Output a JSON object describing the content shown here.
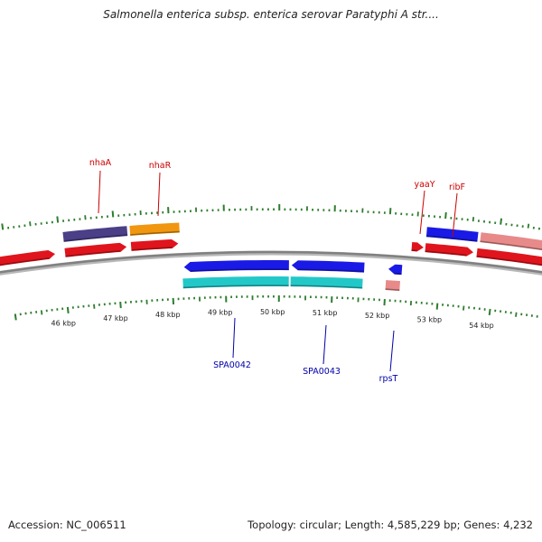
{
  "title": "Salmonella enterica subsp. enterica serovar Paratyphi A str....",
  "footer": {
    "accession": "Accession: NC_006511",
    "summary": "Topology: circular; Length: 4,585,229 bp; Genes: 4,232"
  },
  "colors": {
    "backbone": "#808080",
    "tick": "#2e7d2e",
    "forward_gene": "#e0141c",
    "reverse_gene": "#1a1ae6",
    "reverse_gene_2": "#22c8c8",
    "navy_block": "#4b3f88",
    "orange_block": "#f0960f",
    "pink_block": "#e88a8a",
    "label_red": "#cc0000",
    "label_blue": "#0000aa"
  },
  "scale": {
    "unit": "kbp",
    "major_ticks": [
      {
        "kbp": 46,
        "label": "46 kbp"
      },
      {
        "kbp": 47,
        "label": "47 kbp"
      },
      {
        "kbp": 48,
        "label": "48 kbp"
      },
      {
        "kbp": 49,
        "label": "49 kbp"
      },
      {
        "kbp": 50,
        "label": "50 kbp"
      },
      {
        "kbp": 51,
        "label": "51 kbp"
      },
      {
        "kbp": 52,
        "label": "52 kbp"
      },
      {
        "kbp": 53,
        "label": "53 kbp"
      },
      {
        "kbp": 54,
        "label": "54 kbp"
      }
    ]
  },
  "genes": [
    {
      "id": "nhaA",
      "label": "nhaA",
      "strand": "forward"
    },
    {
      "id": "nhaR",
      "label": "nhaR",
      "strand": "forward"
    },
    {
      "id": "SPA0042",
      "label": "SPA0042",
      "strand": "reverse"
    },
    {
      "id": "SPA0043",
      "label": "SPA0043",
      "strand": "reverse"
    },
    {
      "id": "rpsT",
      "label": "rpsT",
      "strand": "reverse"
    },
    {
      "id": "yaaY",
      "label": "yaaY",
      "strand": "forward"
    },
    {
      "id": "ribF",
      "label": "ribF",
      "strand": "forward"
    }
  ]
}
